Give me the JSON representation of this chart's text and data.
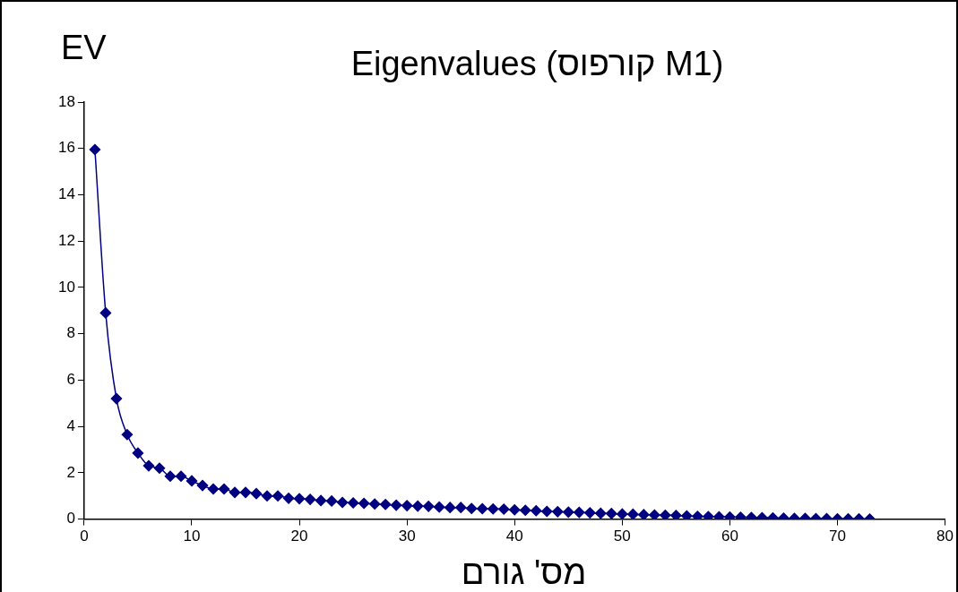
{
  "chart_data": {
    "type": "line",
    "title": "Eigenvalues (קורפוס M1)",
    "xlabel": "מס' גורם",
    "ylabel": "EV",
    "x": [
      1,
      2,
      3,
      4,
      5,
      6,
      7,
      8,
      9,
      10,
      11,
      12,
      13,
      14,
      15,
      16,
      17,
      18,
      19,
      20,
      21,
      22,
      23,
      24,
      25,
      26,
      27,
      28,
      29,
      30,
      31,
      32,
      33,
      34,
      35,
      36,
      37,
      38,
      39,
      40,
      41,
      42,
      43,
      44,
      45,
      46,
      47,
      48,
      49,
      50,
      51,
      52,
      53,
      54,
      55,
      56,
      57,
      58,
      59,
      60,
      61,
      62,
      63,
      64,
      65,
      66,
      67,
      68,
      69,
      70,
      71,
      72,
      73
    ],
    "series": [
      {
        "color": "#000080",
        "values": [
          15.95,
          8.9,
          5.2,
          3.65,
          2.85,
          2.3,
          2.2,
          1.85,
          1.85,
          1.65,
          1.45,
          1.3,
          1.3,
          1.15,
          1.15,
          1.1,
          1.0,
          1.0,
          0.9,
          0.88,
          0.85,
          0.8,
          0.78,
          0.72,
          0.7,
          0.68,
          0.65,
          0.63,
          0.6,
          0.58,
          0.56,
          0.55,
          0.52,
          0.5,
          0.5,
          0.46,
          0.45,
          0.44,
          0.43,
          0.4,
          0.38,
          0.36,
          0.33,
          0.32,
          0.3,
          0.29,
          0.27,
          0.25,
          0.24,
          0.22,
          0.21,
          0.19,
          0.18,
          0.17,
          0.16,
          0.14,
          0.12,
          0.11,
          0.1,
          0.09,
          0.08,
          0.07,
          0.06,
          0.05,
          0.04,
          0.03,
          0.03,
          0.02,
          0.02,
          0.01,
          0.01,
          0.01,
          0.0
        ]
      }
    ],
    "xlim": [
      0,
      80
    ],
    "xticks": [
      0,
      10,
      20,
      30,
      40,
      50,
      60,
      70,
      80
    ],
    "ylim": [
      0,
      18
    ],
    "yticks": [
      0,
      2,
      4,
      6,
      8,
      10,
      12,
      14,
      16,
      18
    ],
    "grid": false,
    "legend": false,
    "marker": "diamond",
    "line_style": "solid"
  }
}
